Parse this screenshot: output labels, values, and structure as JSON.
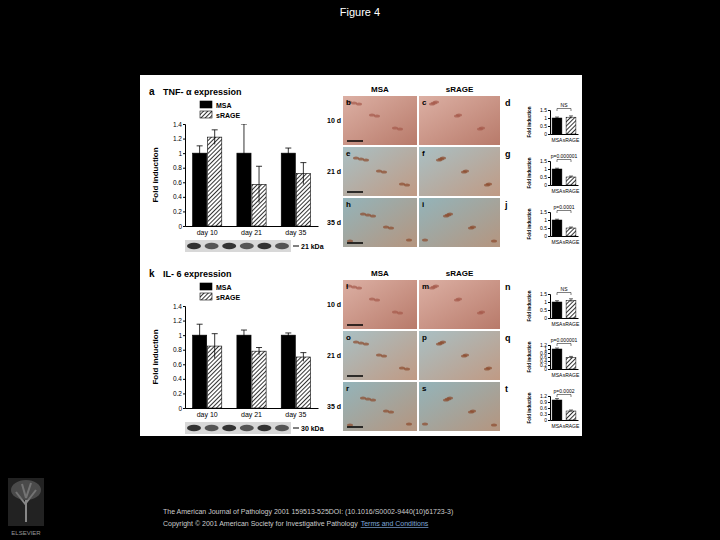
{
  "title": "Figure 4",
  "chart_data": [
    {
      "type": "bar",
      "panel": "a",
      "title": "TNF- α expression",
      "categories": [
        "day 10",
        "day 21",
        "day 35"
      ],
      "series": [
        {
          "name": "MSA",
          "color": "#000000",
          "values": [
            1,
            1,
            1
          ],
          "errors": [
            0.1,
            0.4,
            0.07
          ]
        },
        {
          "name": "sRAGE",
          "color": "#000000",
          "values": [
            1.22,
            0.57,
            0.72
          ],
          "errors": [
            0.1,
            0.25,
            0.15
          ]
        }
      ],
      "ylim": [
        0,
        1.4
      ],
      "yticks": [
        0,
        0.2,
        0.4,
        0.6,
        0.8,
        1,
        1.2,
        1.4
      ],
      "y_label": "Fold induction",
      "legend": "top",
      "annotations": [
        "21 kDa"
      ]
    },
    {
      "type": "bar",
      "panel": "d",
      "categories": [
        "MSA",
        "sRAGE"
      ],
      "values": [
        1,
        1.05
      ],
      "errors": [
        0.06,
        0.08
      ],
      "colors": [
        "#000000",
        "#000000"
      ],
      "ylim": [
        0,
        1.5
      ],
      "yticks": [
        0,
        0.5,
        1,
        1.5
      ],
      "y_label": "Fold induction",
      "annotations": [
        "NS"
      ]
    },
    {
      "type": "bar",
      "panel": "g",
      "categories": [
        "MSA",
        "sRAGE"
      ],
      "values": [
        1,
        0.5
      ],
      "errors": [
        0.05,
        0.06
      ],
      "colors": [
        "#000000",
        "#000000"
      ],
      "ylim": [
        0,
        1.5
      ],
      "yticks": [
        0,
        0.5,
        1,
        1.5
      ],
      "y_label": "Fold induction",
      "annotations": [
        "p=0.000001"
      ]
    },
    {
      "type": "bar",
      "panel": "j",
      "categories": [
        "MSA",
        "sRAGE"
      ],
      "values": [
        1,
        0.5
      ],
      "errors": [
        0.05,
        0.06
      ],
      "colors": [
        "#000000",
        "#000000"
      ],
      "ylim": [
        0,
        1.5
      ],
      "yticks": [
        0,
        0.5,
        1,
        1.5
      ],
      "y_label": "Fold induction",
      "annotations": [
        "p=0.0001"
      ]
    },
    {
      "type": "bar",
      "panel": "k",
      "title": "IL- 6 expression",
      "categories": [
        "day 10",
        "day 21",
        "day 35"
      ],
      "series": [
        {
          "name": "MSA",
          "color": "#000000",
          "values": [
            1,
            1,
            1
          ],
          "errors": [
            0.15,
            0.07,
            0.03
          ]
        },
        {
          "name": "sRAGE",
          "color": "#000000",
          "values": [
            0.85,
            0.78,
            0.7
          ],
          "errors": [
            0.17,
            0.05,
            0.06
          ]
        }
      ],
      "ylim": [
        0,
        1.4
      ],
      "yticks": [
        0,
        0.2,
        0.4,
        0.6,
        0.8,
        1,
        1.2,
        1.4
      ],
      "y_label": "Fold induction",
      "legend": "top",
      "annotations": [
        "30 kDa"
      ]
    },
    {
      "type": "bar",
      "panel": "n",
      "categories": [
        "MSA",
        "sRAGE"
      ],
      "values": [
        1,
        1.1
      ],
      "errors": [
        0.08,
        0.1
      ],
      "colors": [
        "#000000",
        "#000000"
      ],
      "ylim": [
        0,
        1.5
      ],
      "yticks": [
        0,
        0.5,
        1,
        1.5
      ],
      "y_label": "Fold induction",
      "annotations": [
        "NS"
      ]
    },
    {
      "type": "bar",
      "panel": "q",
      "categories": [
        "MSA",
        "sRAGE"
      ],
      "values": [
        1,
        0.58
      ],
      "errors": [
        0.05,
        0.05
      ],
      "colors": [
        "#000000",
        "#000000"
      ],
      "ylim": [
        0,
        1.2
      ],
      "yticks": [
        0,
        0.2,
        0.4,
        0.6,
        0.8,
        1,
        1.2
      ],
      "y_label": "Fold induction",
      "annotations": [
        "p=0.000001"
      ]
    },
    {
      "type": "bar",
      "panel": "t",
      "categories": [
        "MSA",
        "sRAGE"
      ],
      "values": [
        1,
        0.45
      ],
      "errors": [
        0.07,
        0.05
      ],
      "colors": [
        "#000000",
        "#000000"
      ],
      "ylim": [
        0,
        1.2
      ],
      "yticks": [
        0,
        0.3,
        0.6,
        0.9,
        1.2
      ],
      "y_label": "Fold induction",
      "annotations": [
        "p=0.0002"
      ]
    }
  ],
  "micrographs": [
    {
      "columns": [
        "MSA",
        "sRAGE"
      ],
      "rows": [
        "10 d",
        "21 d",
        "35 d"
      ],
      "letters": [
        [
          "b",
          "c"
        ],
        [
          "e",
          "f"
        ],
        [
          "h",
          "i"
        ]
      ]
    },
    {
      "columns": [
        "MSA",
        "sRAGE"
      ],
      "rows": [
        "10 d",
        "21 d",
        "35 d"
      ],
      "letters": [
        [
          "l",
          "m"
        ],
        [
          "o",
          "p"
        ],
        [
          "r",
          "s"
        ]
      ]
    }
  ],
  "footer": {
    "citation": "The American Journal of Pathology 2001 159513-525DOI: (10.1016/S0002-9440(10)61723-3)",
    "copyright": "Copyright © 2001 American Society for Investigative Pathology",
    "link": "Terms and Conditions"
  },
  "logo": "ELSEVIER"
}
